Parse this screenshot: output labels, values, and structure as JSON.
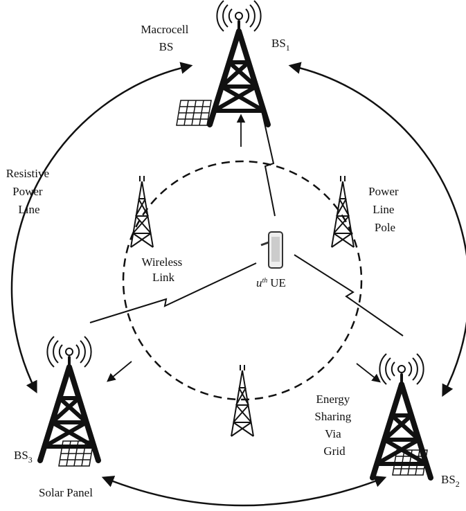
{
  "labels": {
    "macrocell": [
      "Macrocell",
      "BS"
    ],
    "bs1": {
      "name": "BS",
      "sub": "1"
    },
    "bs2": {
      "name": "BS",
      "sub": "2"
    },
    "bs3": {
      "name": "BS",
      "sub": "3"
    },
    "resistive_power_line": [
      "Resistive",
      "Power",
      "Line"
    ],
    "power_line_pole": [
      "Power",
      "Line",
      "Pole"
    ],
    "wireless_link": [
      "Wireless",
      "Link"
    ],
    "ue": {
      "name": "u",
      "sup": "th",
      "suffix": "UE"
    },
    "energy_sharing": [
      "Energy",
      "Sharing",
      "Via",
      "Grid"
    ],
    "solar_panel": "Solar Panel"
  }
}
